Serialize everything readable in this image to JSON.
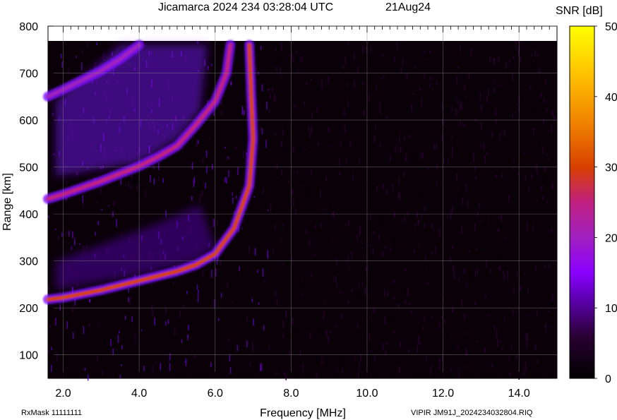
{
  "chart_data": {
    "type": "heatmap",
    "title": "Jicamarca 2024 234 03:28:04 UTC",
    "date_label": "21Aug24",
    "xlabel": "Frequency [MHz]",
    "ylabel": "Range [km]",
    "colorbar_label": "SNR [dB]",
    "xlim": [
      1.6,
      15.0
    ],
    "ylim": [
      50,
      800
    ],
    "xticks": [
      "2.0",
      "4.0",
      "6.0",
      "8.0",
      "10.0",
      "12.0",
      "14.0"
    ],
    "xtick_values": [
      2,
      4,
      6,
      8,
      10,
      12,
      14
    ],
    "yticks": [
      "100",
      "200",
      "300",
      "400",
      "500",
      "600",
      "700",
      "800"
    ],
    "ytick_values": [
      100,
      200,
      300,
      400,
      500,
      600,
      700,
      800
    ],
    "colorbar_ticks": [
      "0",
      "10",
      "20",
      "30",
      "40",
      "50"
    ],
    "colorbar_values": [
      0,
      10,
      20,
      30,
      40,
      50
    ],
    "colormap": [
      "#000000",
      "#2a0033",
      "#5a00aa",
      "#8a00ff",
      "#a020c0",
      "#c02080",
      "#d84000",
      "#f08000",
      "#ffc000",
      "#ffff00"
    ],
    "grid": true,
    "traces": [
      {
        "name": "",
        "points": [
          [
            1.6,
            218
          ],
          [
            2.0,
            222
          ],
          [
            3.0,
            238
          ],
          [
            4.0,
            258
          ],
          [
            5.0,
            278
          ],
          [
            5.5,
            292
          ],
          [
            6.0,
            315
          ],
          [
            6.5,
            370
          ],
          [
            6.9,
            460
          ],
          [
            7.0,
            560
          ],
          [
            6.95,
            650
          ],
          [
            6.9,
            760
          ]
        ],
        "snr": 32
      },
      {
        "name": "",
        "points": [
          [
            1.6,
            432
          ],
          [
            2.0,
            442
          ],
          [
            3.0,
            470
          ],
          [
            4.0,
            502
          ],
          [
            4.5,
            522
          ],
          [
            5.0,
            545
          ],
          [
            5.5,
            590
          ],
          [
            6.0,
            640
          ],
          [
            6.3,
            700
          ],
          [
            6.4,
            760
          ]
        ],
        "snr": 28
      },
      {
        "name": "",
        "points": [
          [
            1.6,
            650
          ],
          [
            2.0,
            665
          ],
          [
            3.0,
            705
          ],
          [
            3.5,
            730
          ],
          [
            4.0,
            760
          ]
        ],
        "snr": 22
      }
    ]
  },
  "footer": {
    "rxmask": "RxMask 11111111",
    "file": "VIPIR  JM91J_2024234032804.RIQ"
  }
}
